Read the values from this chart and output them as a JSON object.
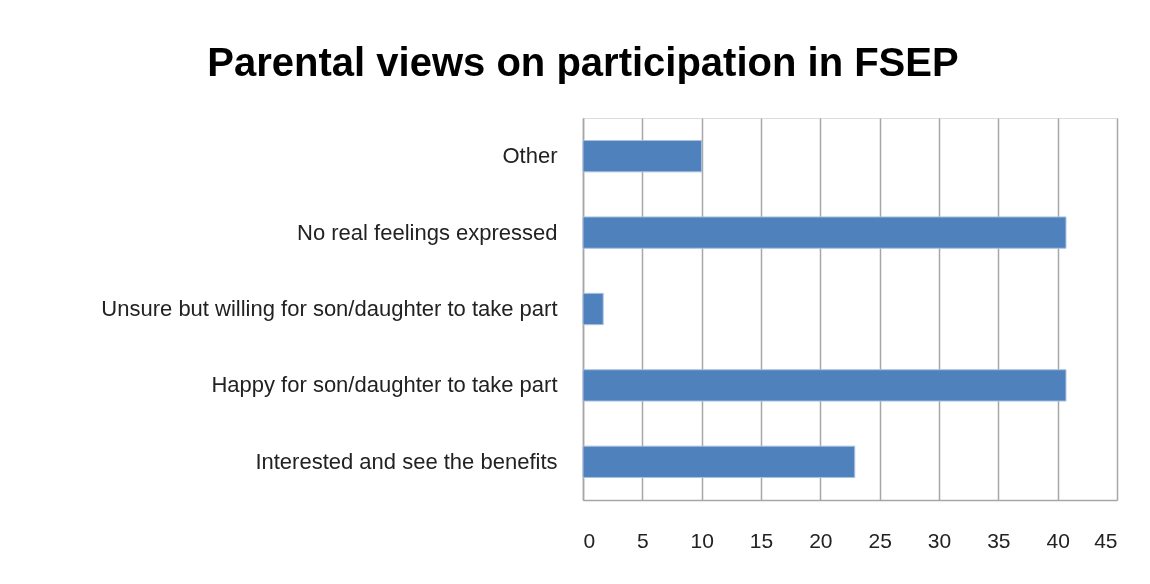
{
  "chart_data": {
    "type": "bar",
    "orientation": "horizontal",
    "title": "Parental views on participation in FSEP",
    "categories": [
      "Other",
      "No real feelings expressed",
      "Unsure but willing for son/daughter to take part",
      "Happy for son/daughter to take part",
      "Interested and see the benefits"
    ],
    "values": [
      10,
      40.7,
      1.7,
      40.7,
      22.9
    ],
    "color": "#4f81bd",
    "xlim": [
      0,
      45
    ],
    "xticks": [
      0,
      5,
      10,
      15,
      20,
      25,
      30,
      35,
      40,
      45
    ],
    "grid": "x"
  }
}
